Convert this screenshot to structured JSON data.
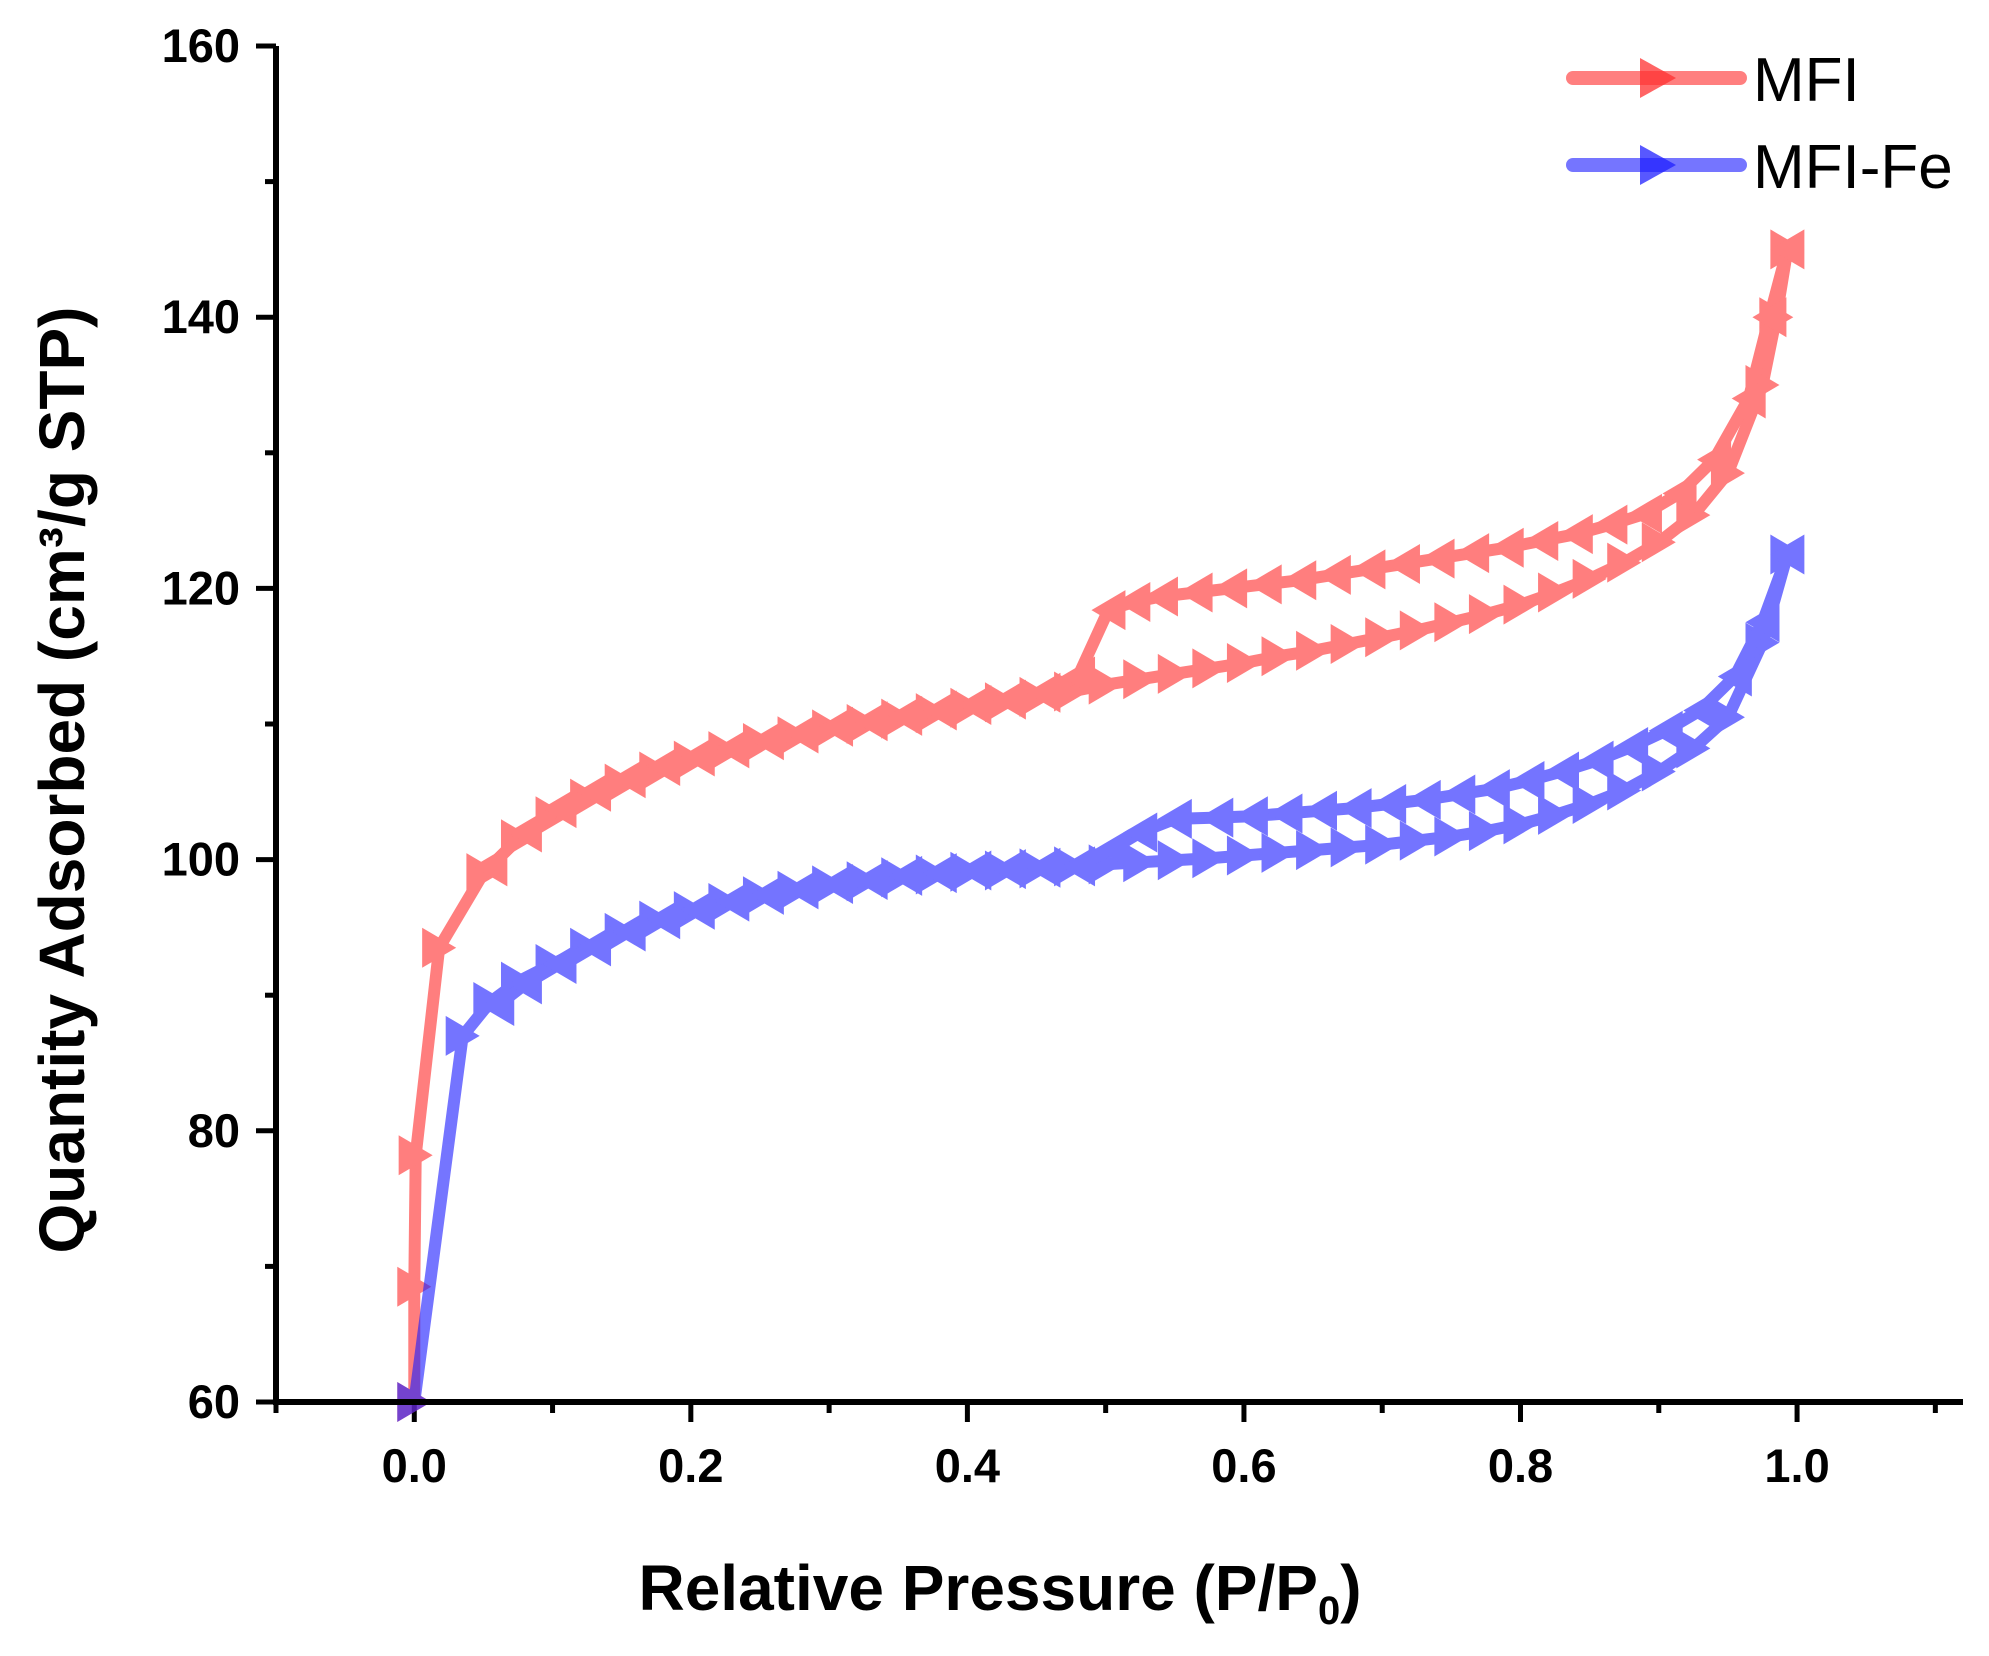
{
  "chart_data": {
    "type": "line",
    "title": "",
    "xlabel": "Relative Pressure (P/P",
    "xlabel_subscript": "0",
    "xlabel_suffix": ")",
    "ylabel": "Quantity Adsorbed (cm³/g STP)",
    "xlim": [
      -0.1,
      1.12
    ],
    "ylim": [
      60,
      160
    ],
    "xticks": [
      0.0,
      0.2,
      0.4,
      0.6,
      0.8,
      1.0
    ],
    "xtick_labels": [
      "0.0",
      "0.2",
      "0.4",
      "0.6",
      "0.8",
      "1.0"
    ],
    "yticks": [
      60,
      80,
      100,
      120,
      140,
      160
    ],
    "ytick_labels": [
      "60",
      "80",
      "100",
      "120",
      "140",
      "160"
    ],
    "legend_position": "top-right",
    "series": [
      {
        "name": "MFI",
        "color": "#ff3030",
        "marker": "triangle-right",
        "adsorption": [
          [
            0.0,
            60.0
          ],
          [
            0.0,
            68.5
          ],
          [
            0.001,
            78.2
          ],
          [
            0.018,
            93.5
          ],
          [
            0.05,
            99.0
          ],
          [
            0.075,
            101.5
          ],
          [
            0.1,
            103.2
          ],
          [
            0.125,
            104.5
          ],
          [
            0.15,
            105.6
          ],
          [
            0.175,
            106.5
          ],
          [
            0.2,
            107.3
          ],
          [
            0.225,
            108.0
          ],
          [
            0.25,
            108.6
          ],
          [
            0.275,
            109.1
          ],
          [
            0.3,
            109.6
          ],
          [
            0.325,
            110.0
          ],
          [
            0.35,
            110.4
          ],
          [
            0.375,
            110.8
          ],
          [
            0.4,
            111.2
          ],
          [
            0.425,
            111.6
          ],
          [
            0.45,
            112.0
          ],
          [
            0.475,
            112.4
          ],
          [
            0.5,
            112.9
          ],
          [
            0.525,
            113.3
          ],
          [
            0.55,
            113.7
          ],
          [
            0.575,
            114.1
          ],
          [
            0.6,
            114.5
          ],
          [
            0.625,
            115.0
          ],
          [
            0.65,
            115.4
          ],
          [
            0.675,
            115.9
          ],
          [
            0.7,
            116.4
          ],
          [
            0.725,
            116.9
          ],
          [
            0.75,
            117.5
          ],
          [
            0.775,
            118.1
          ],
          [
            0.8,
            118.8
          ],
          [
            0.825,
            119.7
          ],
          [
            0.85,
            120.7
          ],
          [
            0.875,
            121.9
          ],
          [
            0.9,
            123.4
          ],
          [
            0.925,
            125.4
          ],
          [
            0.95,
            128.5
          ],
          [
            0.975,
            135.0
          ],
          [
            0.985,
            140.0
          ],
          [
            0.993,
            145.0
          ]
        ],
        "desorption": [
          [
            0.993,
            145.0
          ],
          [
            0.98,
            140.0
          ],
          [
            0.965,
            134.0
          ],
          [
            0.94,
            129.5
          ],
          [
            0.915,
            127.0
          ],
          [
            0.89,
            125.5
          ],
          [
            0.865,
            124.7
          ],
          [
            0.84,
            124.0
          ],
          [
            0.815,
            123.5
          ],
          [
            0.79,
            123.0
          ],
          [
            0.765,
            122.6
          ],
          [
            0.74,
            122.2
          ],
          [
            0.715,
            121.8
          ],
          [
            0.69,
            121.4
          ],
          [
            0.665,
            121.0
          ],
          [
            0.64,
            120.6
          ],
          [
            0.615,
            120.3
          ],
          [
            0.59,
            120.0
          ],
          [
            0.565,
            119.7
          ],
          [
            0.54,
            119.4
          ],
          [
            0.52,
            119.0
          ],
          [
            0.502,
            118.4
          ],
          [
            0.48,
            113.5
          ],
          [
            0.455,
            112.3
          ],
          [
            0.43,
            111.8
          ],
          [
            0.405,
            111.4
          ],
          [
            0.38,
            111.0
          ],
          [
            0.355,
            110.6
          ],
          [
            0.33,
            110.2
          ],
          [
            0.305,
            109.8
          ],
          [
            0.28,
            109.3
          ],
          [
            0.255,
            108.8
          ],
          [
            0.23,
            108.2
          ],
          [
            0.205,
            107.6
          ],
          [
            0.18,
            106.9
          ],
          [
            0.155,
            106.0
          ],
          [
            0.13,
            105.0
          ],
          [
            0.105,
            103.8
          ],
          [
            0.08,
            102.0
          ],
          [
            0.055,
            99.5
          ]
        ]
      },
      {
        "name": "MFI-Fe",
        "color": "#2020ff",
        "marker": "triangle-right",
        "adsorption": [
          [
            0.0,
            60.0
          ],
          [
            0.035,
            87.0
          ],
          [
            0.055,
            89.5
          ],
          [
            0.075,
            91.0
          ],
          [
            0.1,
            92.3
          ],
          [
            0.125,
            93.5
          ],
          [
            0.15,
            94.6
          ],
          [
            0.175,
            95.5
          ],
          [
            0.2,
            96.2
          ],
          [
            0.225,
            96.8
          ],
          [
            0.25,
            97.3
          ],
          [
            0.275,
            97.7
          ],
          [
            0.3,
            98.1
          ],
          [
            0.325,
            98.4
          ],
          [
            0.35,
            98.7
          ],
          [
            0.375,
            98.9
          ],
          [
            0.4,
            99.1
          ],
          [
            0.425,
            99.2
          ],
          [
            0.45,
            99.35
          ],
          [
            0.475,
            99.5
          ],
          [
            0.5,
            99.65
          ],
          [
            0.525,
            99.8
          ],
          [
            0.55,
            99.95
          ],
          [
            0.575,
            100.1
          ],
          [
            0.6,
            100.3
          ],
          [
            0.625,
            100.5
          ],
          [
            0.65,
            100.7
          ],
          [
            0.675,
            100.9
          ],
          [
            0.7,
            101.1
          ],
          [
            0.725,
            101.4
          ],
          [
            0.75,
            101.7
          ],
          [
            0.775,
            102.1
          ],
          [
            0.8,
            102.6
          ],
          [
            0.825,
            103.3
          ],
          [
            0.85,
            104.1
          ],
          [
            0.875,
            105.1
          ],
          [
            0.9,
            106.5
          ],
          [
            0.925,
            108.2
          ],
          [
            0.95,
            110.5
          ],
          [
            0.975,
            116.0
          ],
          [
            0.993,
            122.5
          ]
        ],
        "desorption": [
          [
            0.993,
            122.5
          ],
          [
            0.975,
            117.5
          ],
          [
            0.955,
            113.5
          ],
          [
            0.93,
            111.0
          ],
          [
            0.905,
            109.5
          ],
          [
            0.88,
            108.3
          ],
          [
            0.855,
            107.3
          ],
          [
            0.83,
            106.5
          ],
          [
            0.805,
            105.8
          ],
          [
            0.78,
            105.2
          ],
          [
            0.755,
            104.8
          ],
          [
            0.73,
            104.4
          ],
          [
            0.705,
            104.1
          ],
          [
            0.68,
            103.8
          ],
          [
            0.655,
            103.6
          ],
          [
            0.63,
            103.4
          ],
          [
            0.605,
            103.2
          ],
          [
            0.58,
            103.1
          ],
          [
            0.55,
            103.0
          ],
          [
            0.525,
            102.0
          ],
          [
            0.505,
            100.8
          ],
          [
            0.48,
            99.5
          ],
          [
            0.455,
            99.4
          ],
          [
            0.43,
            99.3
          ],
          [
            0.405,
            99.2
          ],
          [
            0.38,
            99.0
          ],
          [
            0.355,
            98.8
          ],
          [
            0.33,
            98.5
          ],
          [
            0.305,
            98.2
          ],
          [
            0.28,
            97.8
          ],
          [
            0.255,
            97.4
          ],
          [
            0.23,
            96.9
          ],
          [
            0.205,
            96.3
          ],
          [
            0.18,
            95.6
          ],
          [
            0.155,
            94.7
          ],
          [
            0.13,
            93.6
          ],
          [
            0.105,
            92.3
          ],
          [
            0.08,
            90.8
          ],
          [
            0.06,
            89.2
          ]
        ]
      }
    ]
  }
}
